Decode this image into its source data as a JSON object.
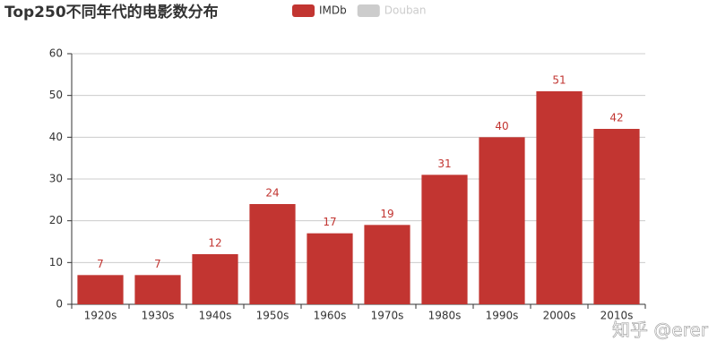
{
  "chart_data": {
    "type": "bar",
    "title": "Top250不同年代的电影数分布",
    "legend": [
      {
        "name": "IMDb",
        "color": "#c23531",
        "active": true
      },
      {
        "name": "Douban",
        "color": "#cccccc",
        "active": false
      }
    ],
    "categories": [
      "1920s",
      "1930s",
      "1940s",
      "1950s",
      "1960s",
      "1970s",
      "1980s",
      "1990s",
      "2000s",
      "2010s"
    ],
    "series": [
      {
        "name": "IMDb",
        "color": "#c23531",
        "values": [
          7,
          7,
          12,
          24,
          17,
          19,
          31,
          40,
          51,
          42
        ]
      }
    ],
    "ylim": [
      0,
      60
    ],
    "yticks": [
      0,
      10,
      20,
      30,
      40,
      50,
      60
    ],
    "grid": true,
    "watermark": "知乎 @erer"
  }
}
